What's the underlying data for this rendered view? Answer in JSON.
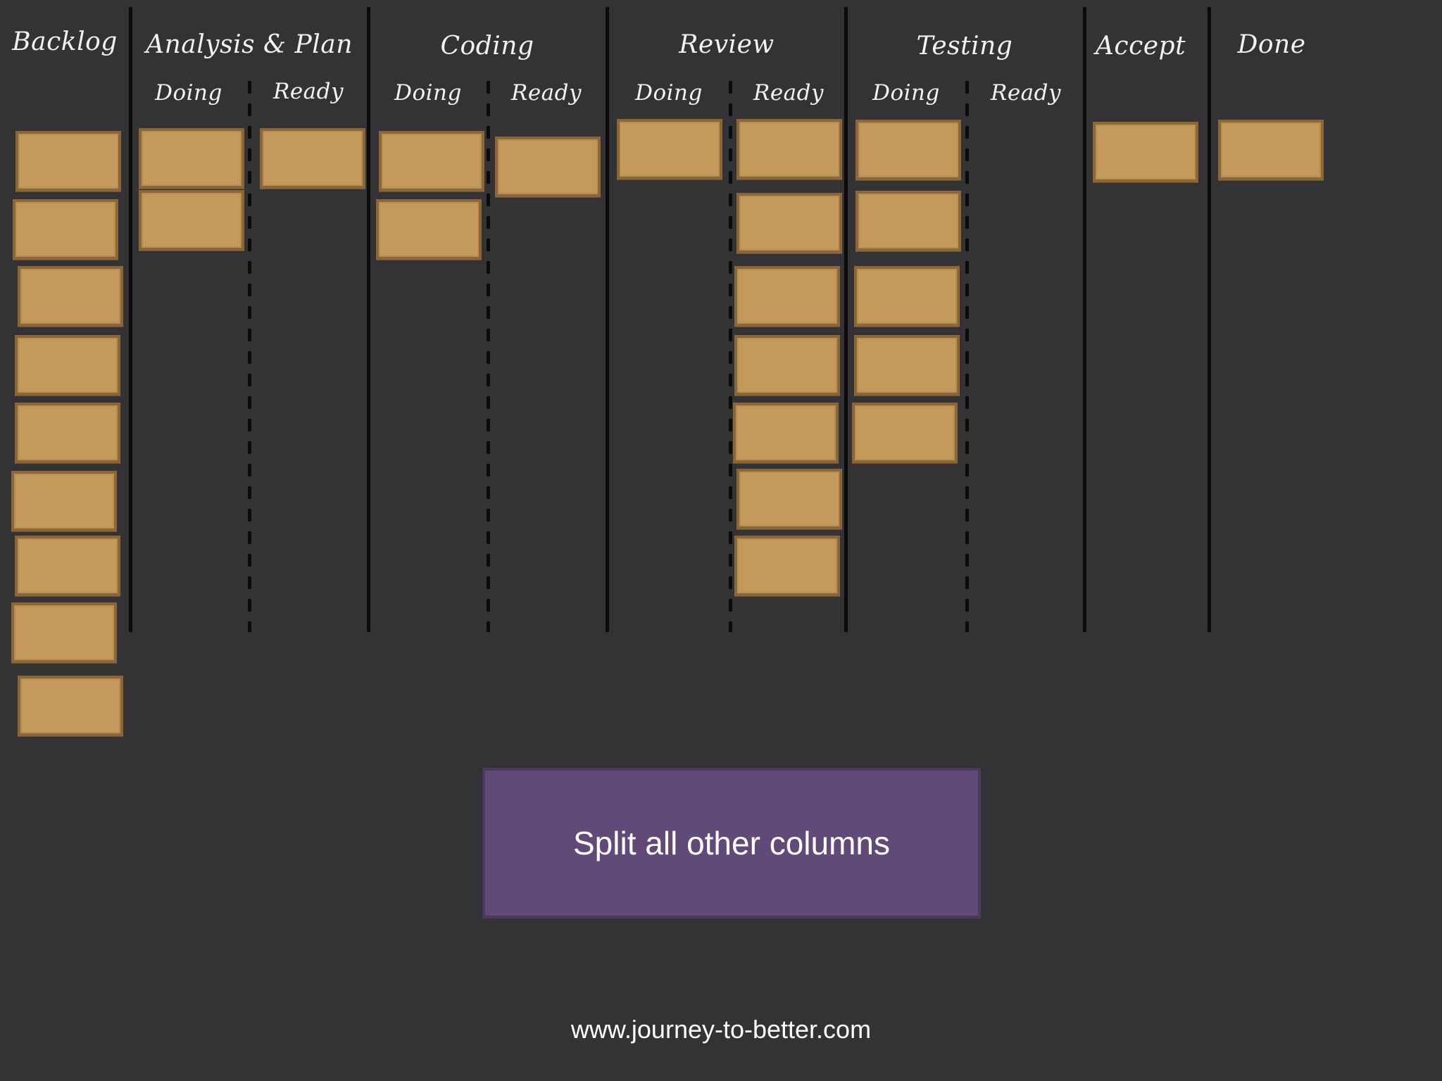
{
  "columns": [
    {
      "title": "Backlog",
      "cards": 9
    },
    {
      "title": "Analysis & Plan",
      "subcolumns": [
        {
          "label": "Doing",
          "cards": 2
        },
        {
          "label": "Ready",
          "cards": 1
        }
      ]
    },
    {
      "title": "Coding",
      "subcolumns": [
        {
          "label": "Doing",
          "cards": 2
        },
        {
          "label": "Ready",
          "cards": 1
        }
      ]
    },
    {
      "title": "Review",
      "subcolumns": [
        {
          "label": "Doing",
          "cards": 1
        },
        {
          "label": "Ready",
          "cards": 7
        }
      ]
    },
    {
      "title": "Testing",
      "subcolumns": [
        {
          "label": "Doing",
          "cards": 5
        },
        {
          "label": "Ready",
          "cards": 0
        }
      ]
    },
    {
      "title": "Accept",
      "cards": 1
    },
    {
      "title": "Done",
      "cards": 1
    }
  ],
  "callout": {
    "text": "Split all other columns",
    "color": "#624a78"
  },
  "footer": {
    "text": "www.journey-to-better.com"
  },
  "colors": {
    "background": "#333235",
    "card": "#c49a5c",
    "card_border": "#8a6638"
  }
}
